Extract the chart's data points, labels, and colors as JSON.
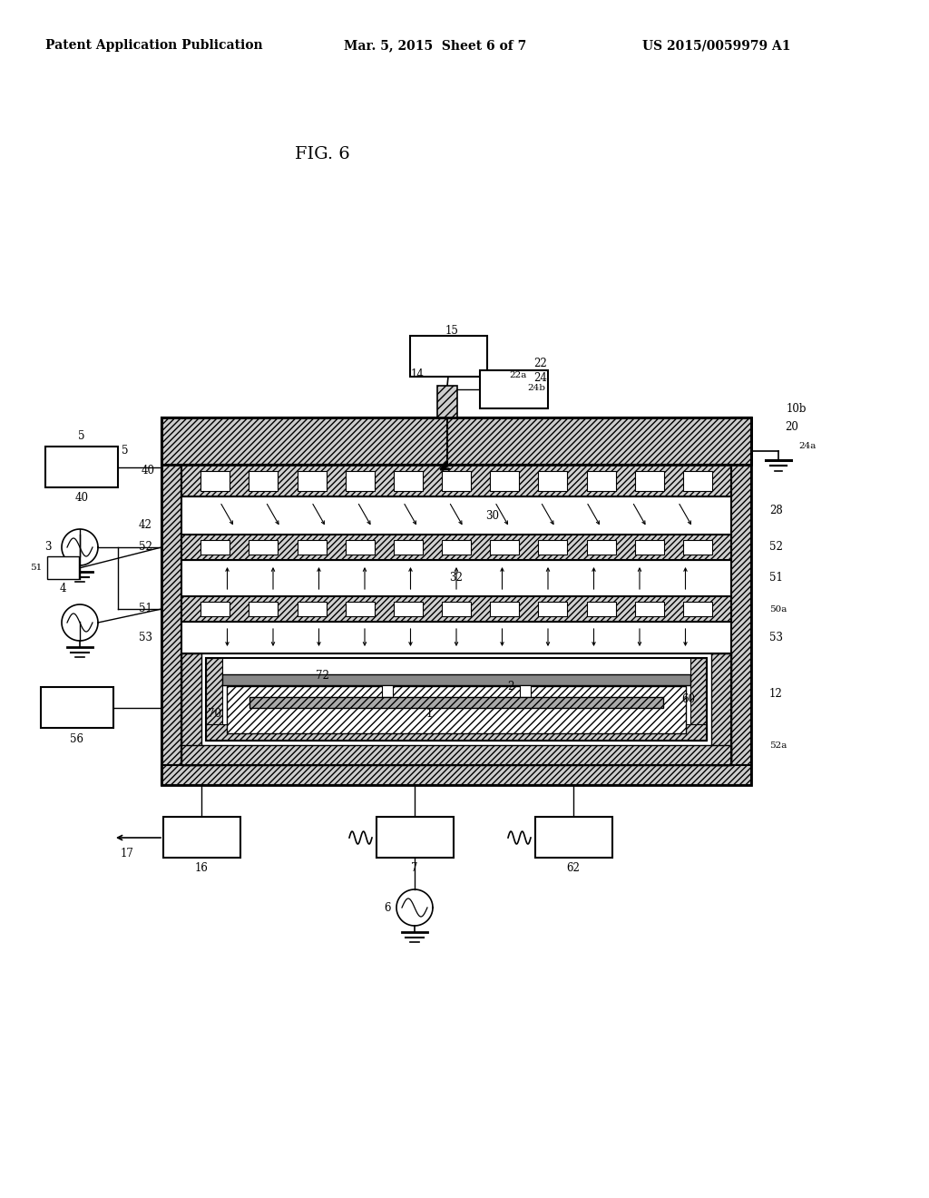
{
  "title": "FIG. 6",
  "header_left": "Patent Application Publication",
  "header_center": "Mar. 5, 2015  Sheet 6 of 7",
  "header_right": "US 2015/0059979 A1",
  "bg_color": "#ffffff",
  "line_color": "#000000"
}
